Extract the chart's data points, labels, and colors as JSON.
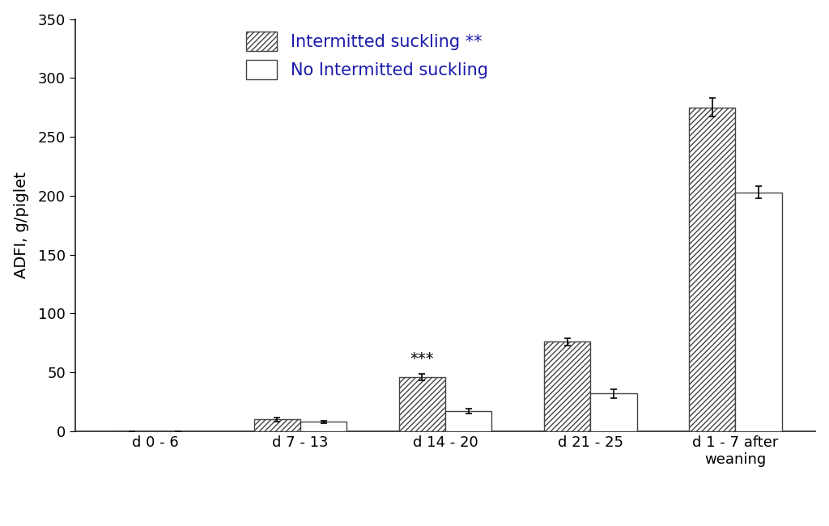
{
  "categories": [
    "d 0 - 6",
    "d 7 - 13",
    "d 14 - 20",
    "d 21 - 25",
    "d 1 - 7 after\nweaning"
  ],
  "intermitted_values": [
    0,
    10,
    46,
    76,
    275
  ],
  "no_intermitted_values": [
    0,
    8,
    17,
    32,
    203
  ],
  "intermitted_errors": [
    0,
    1.5,
    3,
    3,
    8
  ],
  "no_intermitted_errors": [
    0,
    1.0,
    2,
    4,
    5
  ],
  "ylabel": "ADFI, g/piglet",
  "ylim": [
    0,
    350
  ],
  "yticks": [
    0,
    50,
    100,
    150,
    200,
    250,
    300,
    350
  ],
  "legend_intermitted": "Intermitted suckling **",
  "legend_no_intermitted": "No Intermitted suckling",
  "sig_d14_20": "***",
  "bar_width": 0.32,
  "background_color": "#ffffff",
  "font_size": 14,
  "legend_fontsize": 15
}
